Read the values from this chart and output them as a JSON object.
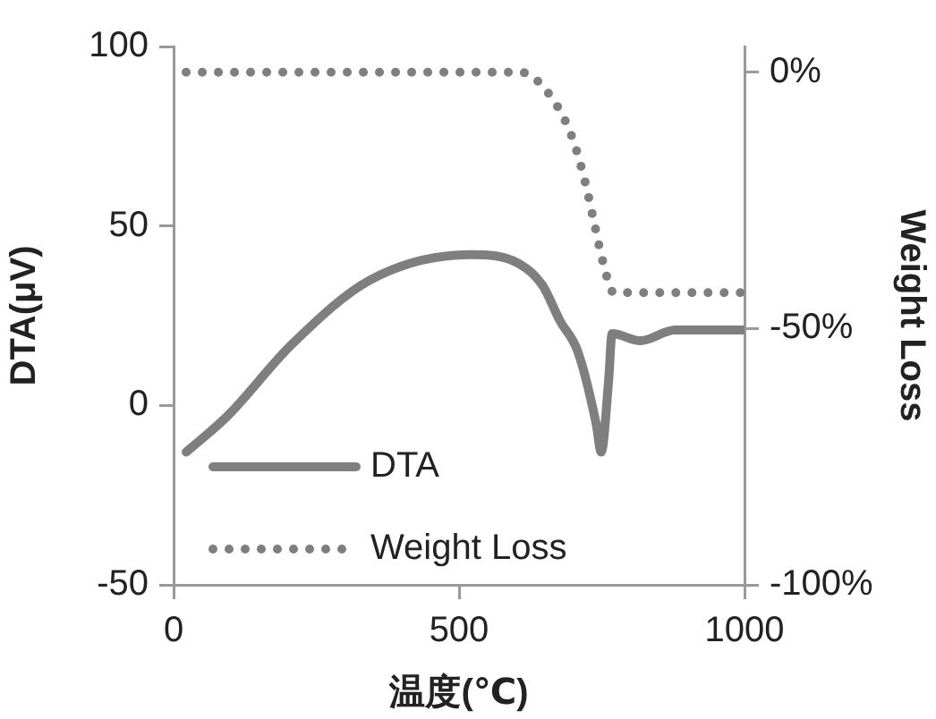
{
  "chart_data": {
    "type": "line",
    "xlabel": "温度(℃)",
    "ylabel": "DTA(μV)",
    "y2label": "Weight Loss",
    "xlim": [
      0,
      1000
    ],
    "xticks": [
      0,
      500,
      1000
    ],
    "ylim": [
      -50,
      100
    ],
    "yticks": [
      -50,
      0,
      50,
      100
    ],
    "y2lim": [
      -100,
      5
    ],
    "y2ticks": [
      {
        "value": -100,
        "label": "-100%"
      },
      {
        "value": -50,
        "label": "-50%"
      },
      {
        "value": 0,
        "label": "0%"
      }
    ],
    "grid": false,
    "legend": "bottom left",
    "marker": "none",
    "series": [
      {
        "name": "DTA",
        "color": "#7f7f7f",
        "line_style": "solid",
        "x": [
          22,
          94,
          207,
          345,
          520,
          605,
          646,
          677,
          708,
          740,
          749,
          762,
          768,
          818,
          878,
          1000
        ],
        "values": [
          -13,
          -3,
          17,
          35,
          42,
          39.5,
          33.5,
          23.5,
          15,
          -5,
          -13,
          7,
          20,
          18,
          21,
          21
        ]
      },
      {
        "name": "Weight Loss",
        "color": "#7f7f7f",
        "line_style": "dotted",
        "axis": "y2",
        "x": [
          22,
          605,
          630,
          674,
          699,
          721,
          736,
          752,
          771,
          1000
        ],
        "values": [
          0,
          0,
          -1,
          -7,
          -13,
          -21.5,
          -29,
          -37,
          -43,
          -43
        ]
      }
    ]
  }
}
